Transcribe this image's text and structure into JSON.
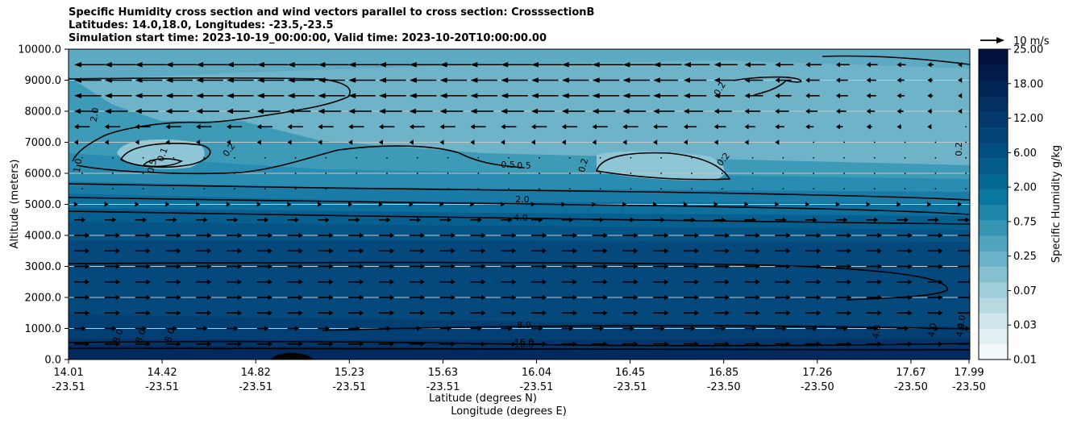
{
  "title_lines": [
    "Specific Humidity cross section and wind vectors parallel to cross section: CrosssectionB",
    "Latitudes: 14.0,18.0, Longitudes: -23.5,-23.5",
    "Simulation start time: 2023-10-19_00:00:00, Valid time: 2023-10-20T10:00:00.00"
  ],
  "chart_data": {
    "type": "heatmap",
    "ylabel": "Altitude (meters)",
    "xlabel_lines": [
      "Latitude (degrees N)",
      "Longitude (degrees E)"
    ],
    "ylim": [
      0,
      10000
    ],
    "y_ticks": [
      "0.0",
      "1000.0",
      "2000.0",
      "3000.0",
      "4000.0",
      "5000.0",
      "6000.0",
      "7000.0",
      "8000.0",
      "9000.0",
      "10000.0"
    ],
    "x_ticks": [
      {
        "lat": "14.01",
        "lon": "-23.51"
      },
      {
        "lat": "14.42",
        "lon": "-23.51"
      },
      {
        "lat": "14.82",
        "lon": "-23.51"
      },
      {
        "lat": "15.23",
        "lon": "-23.51"
      },
      {
        "lat": "15.63",
        "lon": "-23.51"
      },
      {
        "lat": "16.04",
        "lon": "-23.51"
      },
      {
        "lat": "16.45",
        "lon": "-23.51"
      },
      {
        "lat": "16.85",
        "lon": "-23.50"
      },
      {
        "lat": "17.26",
        "lon": "-23.50"
      },
      {
        "lat": "17.67",
        "lon": "-23.50"
      },
      {
        "lat": "17.99",
        "lon": "-23.50"
      }
    ],
    "grid": "horizontal",
    "colorbar": {
      "label": "Specific Humidity g/kg",
      "tick_labels": [
        "0.01",
        "0.03",
        "0.07",
        "0.25",
        "0.75",
        "2.00",
        "6.00",
        "12.00",
        "18.00",
        "25.00"
      ],
      "colors": [
        "#f4fafb",
        "#e3f0f3",
        "#cfe6ec",
        "#b7dae2",
        "#9fcdd9",
        "#86c0d0",
        "#6ab2c7",
        "#4fa3bd",
        "#3695b3",
        "#1f86aa",
        "#0a77a1",
        "#036896",
        "#035b8c",
        "#034f82",
        "#034478",
        "#03396d",
        "#032f62",
        "#032556",
        "#021b4a",
        "#02123e"
      ]
    },
    "quiver_key": "10 m/s",
    "contour_labels": [
      "0.2",
      "0.2",
      "0.2",
      "0.2",
      "0.2",
      "0.1",
      "0.5",
      "0.5",
      "2.0",
      "2.0",
      "4.0",
      "1.0",
      "0.5",
      "8.0",
      "8.0",
      "8.0",
      "8.0",
      "16.0",
      "18.0",
      "4.0",
      "4.0",
      "4.0",
      "4.0"
    ],
    "wind_rows": [
      {
        "alt": 9500,
        "u": -8
      },
      {
        "alt": 9000,
        "u": -7
      },
      {
        "alt": 8500,
        "u": -7
      },
      {
        "alt": 8000,
        "u": -6
      },
      {
        "alt": 7500,
        "u": -4
      },
      {
        "alt": 7000,
        "u": -1
      },
      {
        "alt": 6500,
        "u": 0
      },
      {
        "alt": 6000,
        "u": 0
      },
      {
        "alt": 5500,
        "u": 0
      },
      {
        "alt": 5000,
        "u": 1
      },
      {
        "alt": 4500,
        "u": 3
      },
      {
        "alt": 4000,
        "u": 4
      },
      {
        "alt": 3500,
        "u": 4
      },
      {
        "alt": 3000,
        "u": 4
      },
      {
        "alt": 2500,
        "u": 4
      },
      {
        "alt": 2000,
        "u": 4
      },
      {
        "alt": 1500,
        "u": 4
      },
      {
        "alt": 1000,
        "u": 3
      },
      {
        "alt": 500,
        "u": 4
      }
    ]
  }
}
